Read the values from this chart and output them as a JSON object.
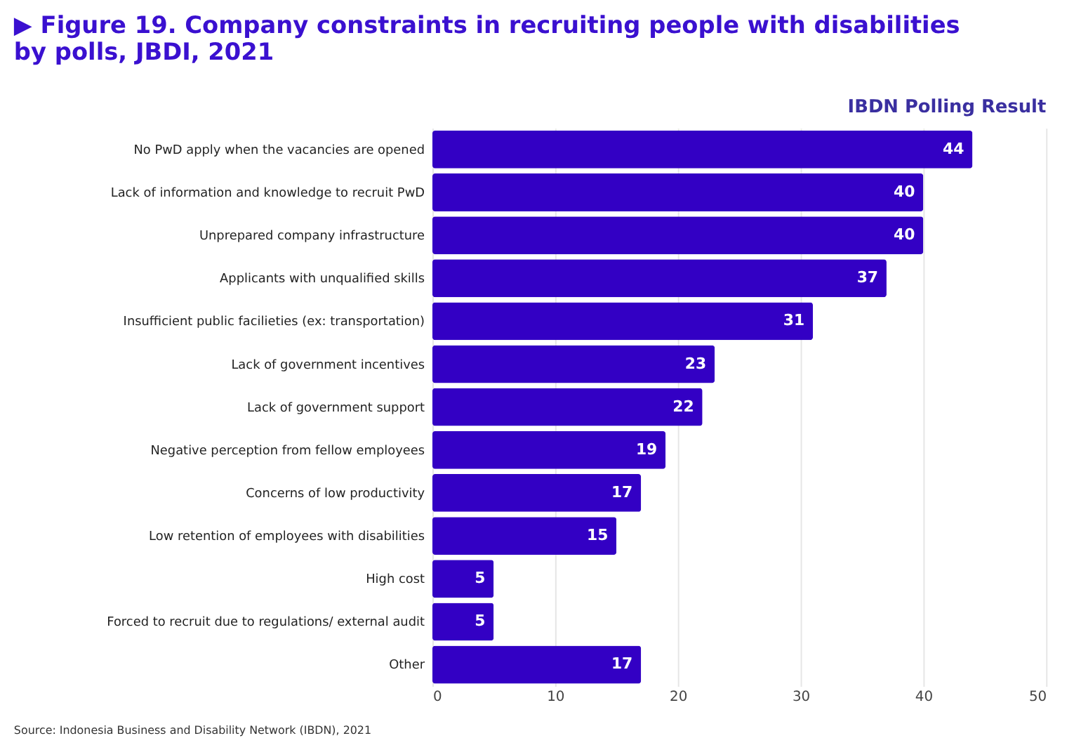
{
  "chart_data": {
    "type": "bar",
    "orientation": "horizontal",
    "title": "▶ Figure 19. Company constraints in recruiting people with disabilities by polls, JBDI, 2021",
    "subtitle": "IBDN Polling Result",
    "categories": [
      "No PwD apply when the vacancies are opened",
      "Lack of information and knowledge to recruit PwD",
      "Unprepared company infrastructure",
      "Applicants with unqualified skills",
      "Insufficient public facilieties (ex: transportation)",
      "Lack of government incentives",
      "Lack of government support",
      "Negative perception from fellow employees",
      "Concerns of low productivity",
      "Low retention of employees with disabilities",
      "High cost",
      "Forced to recruit due to regulations/ external audit",
      "Other"
    ],
    "values": [
      44,
      40,
      40,
      37,
      31,
      23,
      22,
      19,
      17,
      15,
      5,
      5,
      17
    ],
    "color": "#3300c4",
    "xlim": [
      0,
      50
    ],
    "xticks": [
      0,
      10,
      20,
      30,
      40,
      50
    ],
    "grid": "x",
    "data_labels": true,
    "annotations": [
      "Source: Indonesia Business and Disability Network (IBDN), 2021"
    ]
  }
}
